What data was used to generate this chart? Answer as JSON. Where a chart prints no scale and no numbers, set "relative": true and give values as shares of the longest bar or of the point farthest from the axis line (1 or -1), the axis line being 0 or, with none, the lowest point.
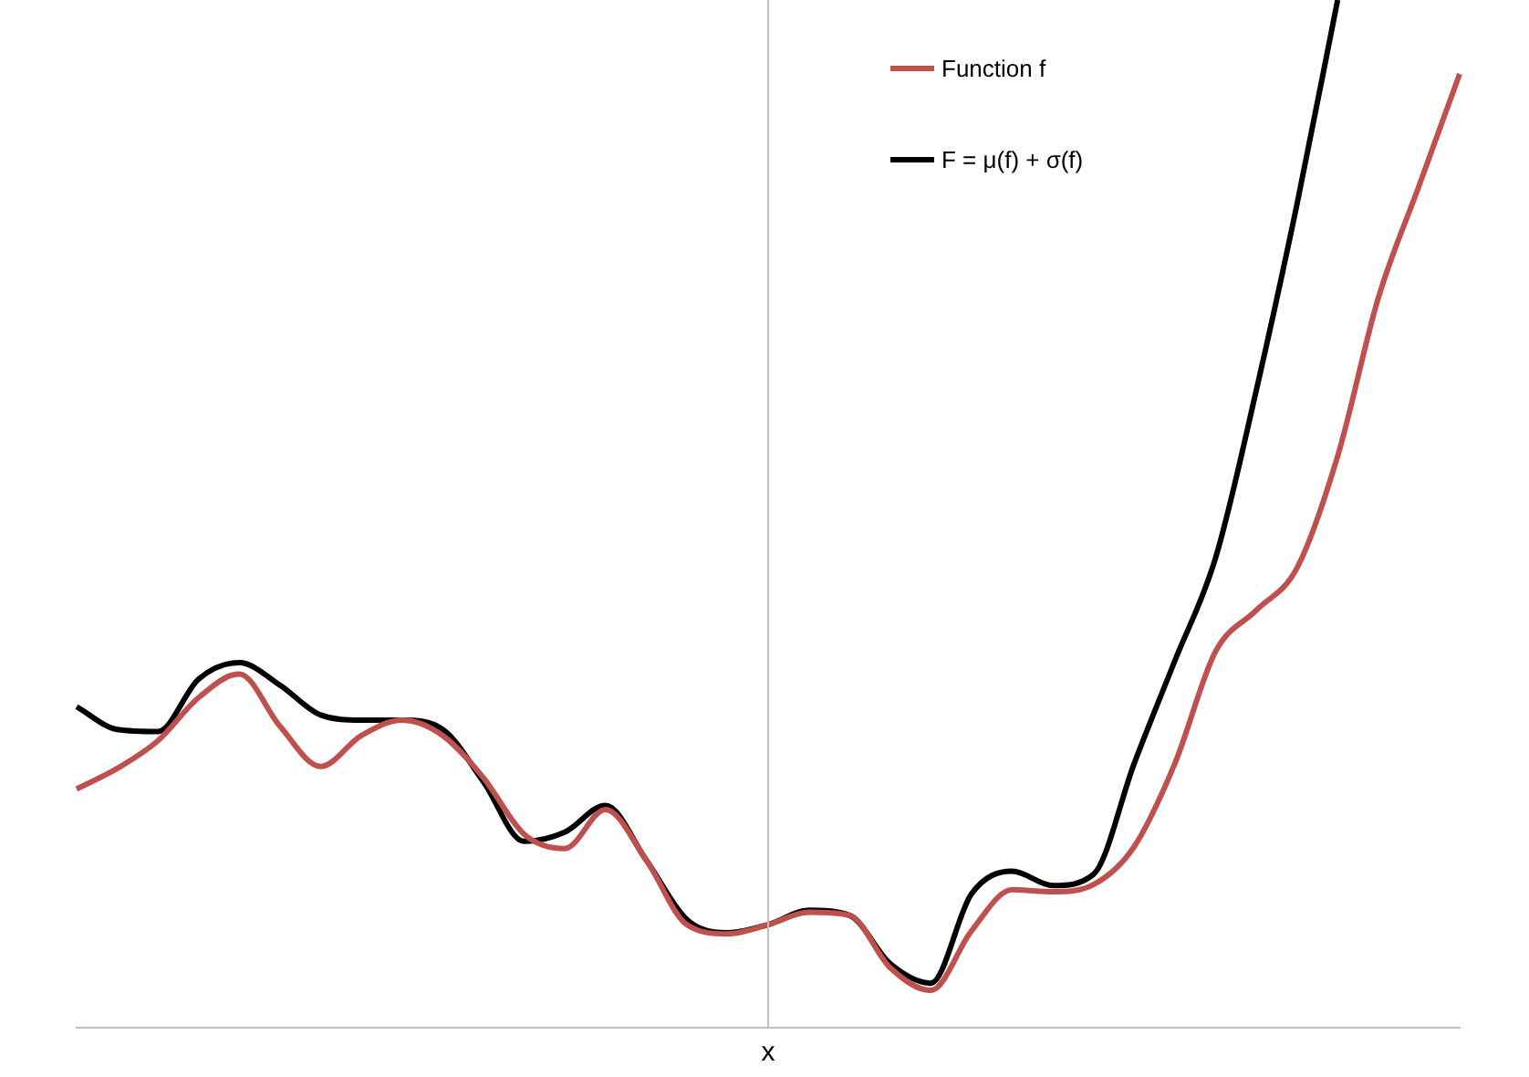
{
  "chart_data": {
    "type": "line",
    "relative": true,
    "xlabel": "x",
    "legend": "top right",
    "grid": false,
    "marker": "none",
    "line_style": "solid",
    "categories": [
      null,
      null,
      null,
      null,
      null,
      null,
      null,
      null,
      null,
      null,
      null,
      null,
      null,
      null,
      null,
      null,
      null,
      null,
      null,
      null,
      null,
      null,
      null,
      null,
      null,
      null,
      null,
      null,
      null,
      null,
      null,
      null,
      null,
      null,
      null
    ],
    "series": [
      {
        "name": "Function f",
        "color": "#c0504d",
        "values": [
          0.232,
          0.252,
          0.279,
          0.321,
          0.344,
          0.293,
          0.254,
          0.284,
          0.299,
          0.284,
          0.243,
          0.188,
          0.174,
          0.212,
          0.163,
          0.1,
          0.091,
          0.1,
          0.112,
          0.109,
          0.058,
          0.036,
          0.094,
          0.134,
          0.132,
          0.139,
          0.176,
          0.257,
          0.366,
          0.406,
          0.447,
          0.556,
          0.71,
          0.819,
          0.928
        ]
      },
      {
        "name": "F = μ(f) + σ(f)",
        "color": "#000000",
        "values": [
          0.312,
          0.29,
          0.288,
          0.339,
          0.355,
          0.333,
          0.304,
          0.299,
          0.299,
          0.29,
          0.239,
          0.181,
          0.19,
          0.216,
          0.163,
          0.105,
          0.092,
          0.1,
          0.114,
          0.109,
          0.062,
          0.043,
          0.13,
          0.152,
          0.138,
          0.149,
          0.257,
          0.357,
          0.457,
          0.62,
          0.801,
          1,
          null,
          null,
          null
        ]
      }
    ]
  }
}
